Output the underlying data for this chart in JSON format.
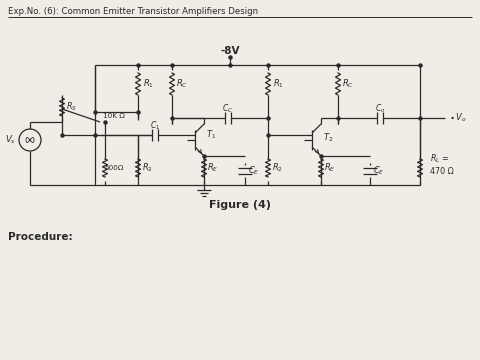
{
  "title": "Exp.No. (6): Common Emitter Transistor Amplifiers Design",
  "figure_label": "Figure (4)",
  "procedure_label": "Procedure:",
  "supply_label": "-8V",
  "background_color": "#e8e4dc",
  "line_color": "#2a2a2a",
  "text_color": "#2a2a2a",
  "paper_color": "#f0ede6"
}
